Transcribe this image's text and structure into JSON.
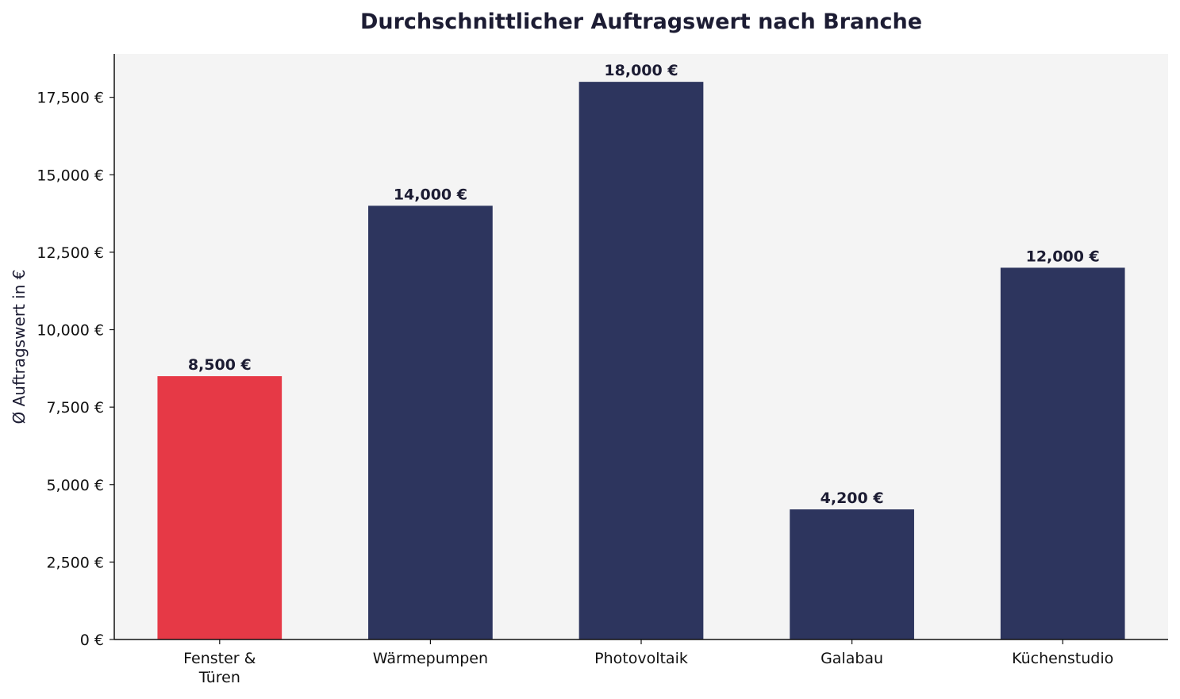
{
  "chart_data": {
    "type": "bar",
    "title": "Durchschnittlicher Auftragswert nach Branche",
    "xlabel": "",
    "ylabel": "Ø Auftragswert in €",
    "categories": [
      "Fenster &\nTüren",
      "Wärmepumpen",
      "Photovoltaik",
      "Galabau",
      "Küchenstudio"
    ],
    "values": [
      8500,
      14000,
      18000,
      4200,
      12000
    ],
    "value_labels": [
      "8,500 €",
      "14,000 €",
      "18,000 €",
      "4,200 €",
      "12,000 €"
    ],
    "bar_colors": [
      "#e63946",
      "#2d355e",
      "#2d355e",
      "#2d355e",
      "#2d355e"
    ],
    "ylim": [
      0,
      18900
    ],
    "yticks": [
      0,
      2500,
      5000,
      7500,
      10000,
      12500,
      15000,
      17500
    ],
    "ytick_labels": [
      "0 €",
      "2,500 €",
      "5,000 €",
      "7,500 €",
      "10,000 €",
      "12,500 €",
      "15,000 €",
      "17,500 €"
    ],
    "grid": false,
    "plot_background": "#f4f4f4",
    "axis_color": "#111111"
  }
}
